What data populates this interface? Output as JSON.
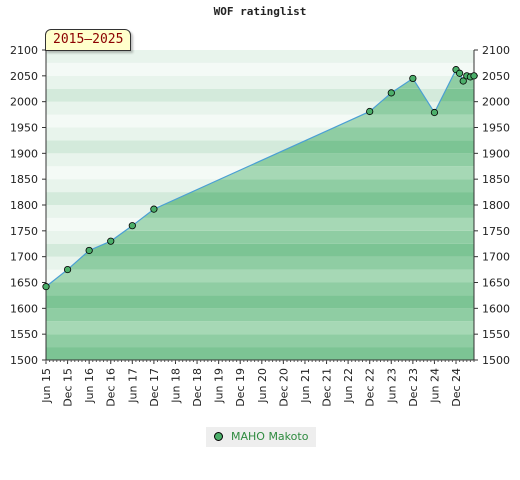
{
  "chart_data": {
    "type": "line",
    "title": "WOF ratinglist",
    "period": "2015–2025",
    "ylim": [
      1500,
      2100
    ],
    "y_ticks": [
      1500,
      1550,
      1600,
      1650,
      1700,
      1750,
      1800,
      1850,
      1900,
      1950,
      2000,
      2050,
      2100
    ],
    "x_range_months": [
      "2015-06",
      "2025-05"
    ],
    "x_tick_labels": [
      "Jun 15",
      "Dec 15",
      "Jun 16",
      "Dec 16",
      "Jun 17",
      "Dec 17",
      "Jun 18",
      "Dec 18",
      "Jun 19",
      "Dec 19",
      "Jun 20",
      "Dec 20",
      "Jun 21",
      "Dec 21",
      "Jun 22",
      "Dec 22",
      "Jun 23",
      "Dec 23",
      "Jun 24",
      "Dec 24"
    ],
    "series": [
      {
        "name": "MAHO Makoto",
        "color": "#4a9fd4",
        "marker_color": "#4caf6a",
        "points": [
          {
            "x": "2015-06",
            "y": 1642
          },
          {
            "x": "2015-12",
            "y": 1675
          },
          {
            "x": "2016-06",
            "y": 1712
          },
          {
            "x": "2016-12",
            "y": 1730
          },
          {
            "x": "2017-06",
            "y": 1760
          },
          {
            "x": "2017-12",
            "y": 1792
          },
          {
            "x": "2022-12",
            "y": 1981
          },
          {
            "x": "2023-06",
            "y": 2017
          },
          {
            "x": "2023-12",
            "y": 2045
          },
          {
            "x": "2024-06",
            "y": 1979
          },
          {
            "x": "2024-12",
            "y": 2062
          },
          {
            "x": "2025-01",
            "y": 2055
          },
          {
            "x": "2025-02",
            "y": 2040
          },
          {
            "x": "2025-03",
            "y": 2050
          },
          {
            "x": "2025-04",
            "y": 2048
          },
          {
            "x": "2025-05",
            "y": 2050
          }
        ]
      }
    ],
    "grid": false,
    "legend_position": "bottom-center"
  }
}
